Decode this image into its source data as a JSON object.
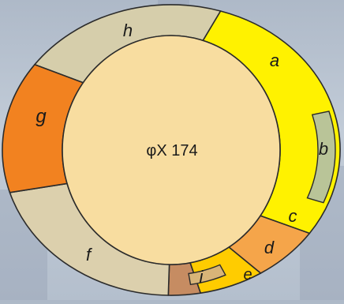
{
  "genome": {
    "title": "φX 174",
    "colors": {
      "a": "#fff200",
      "b": "#b9c498",
      "c": "#f5a54a",
      "d": "#ffcc00",
      "e": "#d8b478",
      "f": "#dcd0ad",
      "g": "#f28220",
      "h": "#d6ceab",
      "i": "#c68c62",
      "inner": "#f8dda0"
    },
    "genes": [
      {
        "id": "a",
        "label": "a"
      },
      {
        "id": "b",
        "label": "b"
      },
      {
        "id": "c",
        "label": "c"
      },
      {
        "id": "d",
        "label": "d"
      },
      {
        "id": "e",
        "label": "e"
      },
      {
        "id": "f",
        "label": "f"
      },
      {
        "id": "g",
        "label": "g"
      },
      {
        "id": "h",
        "label": "h"
      },
      {
        "id": "i",
        "label": "i"
      }
    ]
  }
}
